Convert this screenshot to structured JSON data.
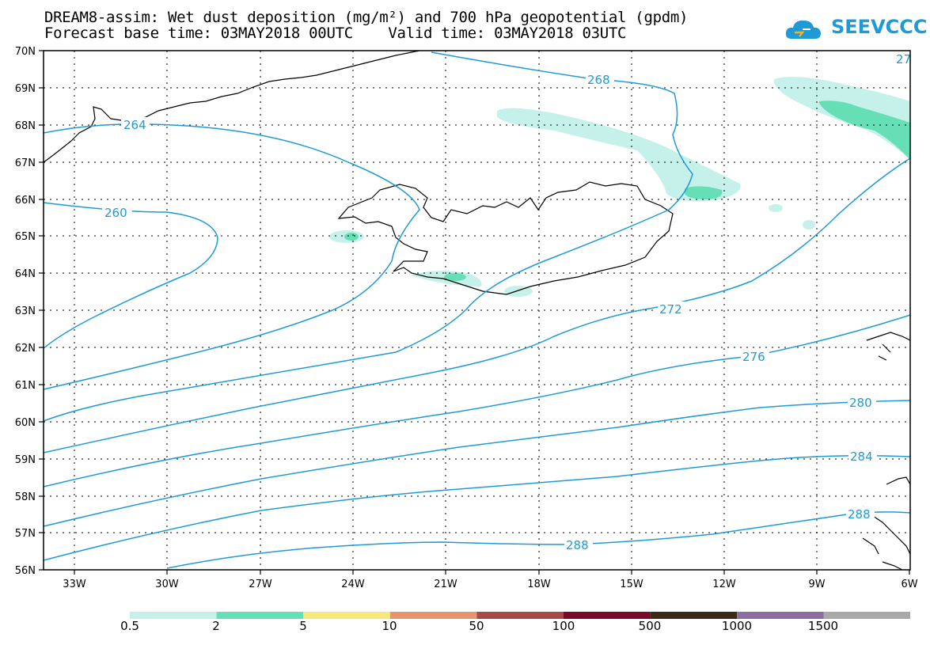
{
  "title_line1": "DREAM8-assim: Wet dust deposition (mg/m²) and 700 hPa geopotential (gpdm)",
  "title_line2": "Forecast base time: 03MAY2018 00UTC    Valid time: 03MAY2018 03UTC",
  "logo": {
    "text": "SEEVCCC",
    "color": "#1e9ad6"
  },
  "map": {
    "lon_range": [
      -34,
      -6
    ],
    "lat_range": [
      56,
      70
    ],
    "lat_labels": [
      "70N",
      "69N",
      "68N",
      "67N",
      "66N",
      "65N",
      "64N",
      "63N",
      "62N",
      "61N",
      "60N",
      "59N",
      "58N",
      "57N",
      "56N"
    ],
    "lon_labels": [
      "33W",
      "30W",
      "27W",
      "24W",
      "21W",
      "18W",
      "15W",
      "12W",
      "9W",
      "6W"
    ],
    "contour_color": "#1e9ad6",
    "contour_labels": [
      "264",
      "260",
      "268",
      "272",
      "276",
      "280",
      "284",
      "288",
      "288",
      "27"
    ]
  },
  "colorbar": {
    "labels": [
      "0.5",
      "2",
      "5",
      "10",
      "50",
      "100",
      "500",
      "1000",
      "1500"
    ],
    "colors": [
      "#c6f1eb",
      "#66deb6",
      "#f8e87a",
      "#ea9370",
      "#a64b45",
      "#7a0a2a",
      "#3a2a18",
      "#8c6ea3",
      "#a9a9a9"
    ]
  }
}
